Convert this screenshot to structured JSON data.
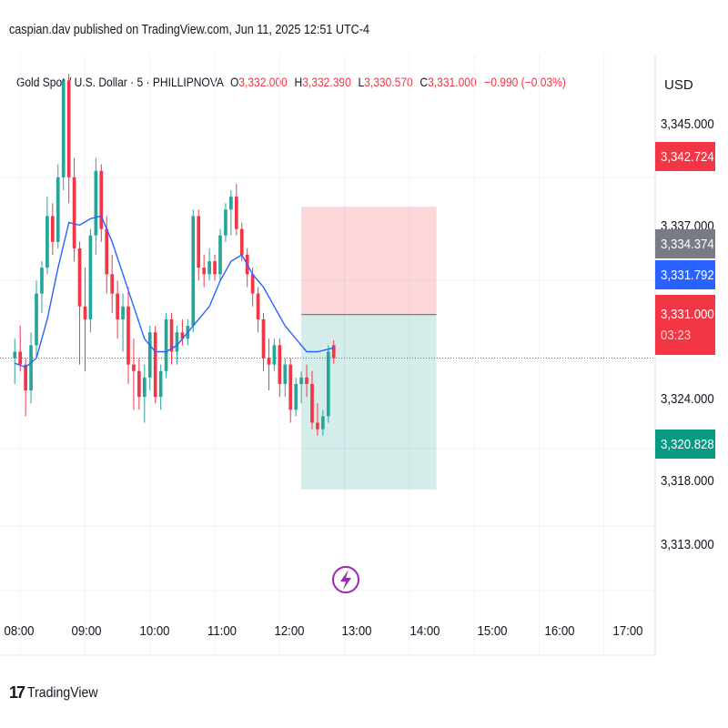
{
  "header": {
    "publisher_line": "caspian.dav published on TradingView.com, Jun 11, 2025 12:51 UTC-4"
  },
  "legend": {
    "symbol": "Gold Spot / U.S. Dollar · 5 · PHILLIPNOVA",
    "open_key": "O",
    "open": "3,332.000",
    "high_key": "H",
    "high": "3,332.390",
    "low_key": "L",
    "low": "3,330.570",
    "close_key": "C",
    "close": "3,331.000",
    "change": "−0.990 (−0.03%)"
  },
  "currency": "USD",
  "price_tags": {
    "target": "3,342.724",
    "entry": "3,334.374",
    "ma": "3,331.792",
    "last": "3,331.000",
    "countdown": "03:23",
    "stop": "3,320.828"
  },
  "colors": {
    "up": "#26a69a",
    "down": "#f23645",
    "ma": "#2962ff",
    "target_zone": "#f23645",
    "stop_zone": "#26a69a",
    "entry_tag": "#787b86",
    "lightning": "#9c27b0"
  },
  "chart_data": {
    "type": "candlestick",
    "title": "Gold Spot / U.S. Dollar · 5 · PHILLIPNOVA",
    "interval_minutes": 5,
    "y_ticks": [
      "3,345.000",
      "3,337.000",
      "3,324.000",
      "3,318.000",
      "3,313.000"
    ],
    "x_ticks": [
      "08:00",
      "09:00",
      "10:00",
      "11:00",
      "12:00",
      "13:00",
      "14:00",
      "15:00",
      "16:00",
      "17:00"
    ],
    "ylim": [
      3308.0,
      3354.5
    ],
    "xlim": [
      "07:59",
      "18:05"
    ],
    "grid": true,
    "candles": [
      {
        "t": "07:55",
        "o": 3331.0,
        "h": 3332.5,
        "l": 3329.0,
        "c": 3331.5
      },
      {
        "t": "08:00",
        "o": 3331.5,
        "h": 3333.5,
        "l": 3330.0,
        "c": 3330.5
      },
      {
        "t": "08:05",
        "o": 3330.5,
        "h": 3331.0,
        "l": 3326.5,
        "c": 3328.5
      },
      {
        "t": "08:10",
        "o": 3328.5,
        "h": 3333.0,
        "l": 3327.5,
        "c": 3332.0
      },
      {
        "t": "08:15",
        "o": 3332.0,
        "h": 3337.0,
        "l": 3331.0,
        "c": 3336.0
      },
      {
        "t": "08:20",
        "o": 3336.0,
        "h": 3338.5,
        "l": 3334.5,
        "c": 3338.0
      },
      {
        "t": "08:25",
        "o": 3338.0,
        "h": 3343.5,
        "l": 3337.5,
        "c": 3342.0
      },
      {
        "t": "08:30",
        "o": 3342.0,
        "h": 3343.0,
        "l": 3339.0,
        "c": 3340.0
      },
      {
        "t": "08:35",
        "o": 3340.0,
        "h": 3346.0,
        "l": 3339.5,
        "c": 3345.0
      },
      {
        "t": "08:40",
        "o": 3345.0,
        "h": 3352.5,
        "l": 3344.0,
        "c": 3352.5
      },
      {
        "t": "08:45",
        "o": 3352.5,
        "h": 3353.0,
        "l": 3343.0,
        "c": 3345.0
      },
      {
        "t": "08:50",
        "o": 3345.0,
        "h": 3346.5,
        "l": 3338.5,
        "c": 3339.5
      },
      {
        "t": "08:55",
        "o": 3339.5,
        "h": 3340.0,
        "l": 3330.5,
        "c": 3335.0
      },
      {
        "t": "09:00",
        "o": 3335.0,
        "h": 3338.0,
        "l": 3330.0,
        "c": 3334.0
      },
      {
        "t": "09:05",
        "o": 3334.0,
        "h": 3341.0,
        "l": 3333.0,
        "c": 3340.5
      },
      {
        "t": "09:10",
        "o": 3340.5,
        "h": 3346.5,
        "l": 3339.0,
        "c": 3345.5
      },
      {
        "t": "09:15",
        "o": 3345.5,
        "h": 3346.0,
        "l": 3340.0,
        "c": 3341.0
      },
      {
        "t": "09:20",
        "o": 3341.0,
        "h": 3342.0,
        "l": 3336.0,
        "c": 3337.5
      },
      {
        "t": "09:25",
        "o": 3337.5,
        "h": 3339.0,
        "l": 3334.5,
        "c": 3336.0
      },
      {
        "t": "09:30",
        "o": 3336.0,
        "h": 3337.0,
        "l": 3332.5,
        "c": 3334.0
      },
      {
        "t": "09:35",
        "o": 3334.0,
        "h": 3336.0,
        "l": 3331.5,
        "c": 3335.0
      },
      {
        "t": "09:40",
        "o": 3335.0,
        "h": 3336.5,
        "l": 3329.0,
        "c": 3330.5
      },
      {
        "t": "09:45",
        "o": 3330.5,
        "h": 3332.5,
        "l": 3327.0,
        "c": 3330.0
      },
      {
        "t": "09:50",
        "o": 3330.0,
        "h": 3331.0,
        "l": 3327.0,
        "c": 3328.0
      },
      {
        "t": "09:55",
        "o": 3328.0,
        "h": 3330.5,
        "l": 3326.0,
        "c": 3329.5
      },
      {
        "t": "10:00",
        "o": 3329.5,
        "h": 3333.5,
        "l": 3328.5,
        "c": 3333.0
      },
      {
        "t": "10:05",
        "o": 3333.0,
        "h": 3333.5,
        "l": 3327.5,
        "c": 3328.0
      },
      {
        "t": "10:10",
        "o": 3328.0,
        "h": 3330.5,
        "l": 3327.0,
        "c": 3330.0
      },
      {
        "t": "10:15",
        "o": 3330.0,
        "h": 3334.5,
        "l": 3329.5,
        "c": 3334.0
      },
      {
        "t": "10:20",
        "o": 3334.0,
        "h": 3334.5,
        "l": 3330.5,
        "c": 3331.5
      },
      {
        "t": "10:25",
        "o": 3331.5,
        "h": 3333.5,
        "l": 3330.5,
        "c": 3333.0
      },
      {
        "t": "10:30",
        "o": 3333.0,
        "h": 3334.0,
        "l": 3332.0,
        "c": 3332.5
      },
      {
        "t": "10:35",
        "o": 3332.5,
        "h": 3334.0,
        "l": 3332.0,
        "c": 3333.5
      },
      {
        "t": "10:40",
        "o": 3333.5,
        "h": 3342.5,
        "l": 3333.0,
        "c": 3342.0
      },
      {
        "t": "10:45",
        "o": 3342.0,
        "h": 3342.5,
        "l": 3337.0,
        "c": 3338.0
      },
      {
        "t": "10:50",
        "o": 3338.0,
        "h": 3339.0,
        "l": 3336.5,
        "c": 3337.5
      },
      {
        "t": "10:55",
        "o": 3337.5,
        "h": 3339.5,
        "l": 3337.0,
        "c": 3338.5
      },
      {
        "t": "11:00",
        "o": 3338.5,
        "h": 3339.0,
        "l": 3337.0,
        "c": 3337.5
      },
      {
        "t": "11:05",
        "o": 3337.5,
        "h": 3341.0,
        "l": 3337.0,
        "c": 3340.5
      },
      {
        "t": "11:10",
        "o": 3340.5,
        "h": 3343.0,
        "l": 3340.0,
        "c": 3342.5
      },
      {
        "t": "11:15",
        "o": 3342.5,
        "h": 3344.0,
        "l": 3340.5,
        "c": 3343.5
      },
      {
        "t": "11:20",
        "o": 3343.5,
        "h": 3344.5,
        "l": 3340.5,
        "c": 3341.0
      },
      {
        "t": "11:25",
        "o": 3341.0,
        "h": 3341.5,
        "l": 3338.5,
        "c": 3339.0
      },
      {
        "t": "11:30",
        "o": 3339.0,
        "h": 3339.5,
        "l": 3336.5,
        "c": 3337.5
      },
      {
        "t": "11:35",
        "o": 3337.5,
        "h": 3338.0,
        "l": 3335.0,
        "c": 3336.0
      },
      {
        "t": "11:40",
        "o": 3336.0,
        "h": 3336.5,
        "l": 3333.0,
        "c": 3334.0
      },
      {
        "t": "11:45",
        "o": 3334.0,
        "h": 3334.5,
        "l": 3330.0,
        "c": 3331.0
      },
      {
        "t": "11:50",
        "o": 3331.0,
        "h": 3332.5,
        "l": 3328.5,
        "c": 3330.5
      },
      {
        "t": "11:55",
        "o": 3330.5,
        "h": 3332.5,
        "l": 3330.0,
        "c": 3332.0
      },
      {
        "t": "12:00",
        "o": 3332.0,
        "h": 3332.5,
        "l": 3328.0,
        "c": 3329.0
      },
      {
        "t": "12:05",
        "o": 3329.0,
        "h": 3331.0,
        "l": 3328.0,
        "c": 3330.5
      },
      {
        "t": "12:10",
        "o": 3330.5,
        "h": 3331.0,
        "l": 3326.0,
        "c": 3327.0
      },
      {
        "t": "12:15",
        "o": 3327.0,
        "h": 3329.5,
        "l": 3326.5,
        "c": 3329.0
      },
      {
        "t": "12:20",
        "o": 3329.0,
        "h": 3330.0,
        "l": 3327.5,
        "c": 3329.5
      },
      {
        "t": "12:25",
        "o": 3329.5,
        "h": 3330.5,
        "l": 3328.0,
        "c": 3329.0
      },
      {
        "t": "12:30",
        "o": 3329.0,
        "h": 3330.0,
        "l": 3325.5,
        "c": 3326.0
      },
      {
        "t": "12:35",
        "o": 3326.0,
        "h": 3327.5,
        "l": 3325.0,
        "c": 3325.5
      },
      {
        "t": "12:40",
        "o": 3325.5,
        "h": 3327.0,
        "l": 3325.0,
        "c": 3326.5
      },
      {
        "t": "12:45",
        "o": 3326.5,
        "h": 3332.0,
        "l": 3326.0,
        "c": 3331.5
      },
      {
        "t": "12:50",
        "o": 3332.0,
        "h": 3332.39,
        "l": 3330.57,
        "c": 3331.0
      }
    ],
    "moving_average": [
      {
        "t": "07:55",
        "v": 3330.6
      },
      {
        "t": "08:05",
        "v": 3330.3
      },
      {
        "t": "08:15",
        "v": 3331.0
      },
      {
        "t": "08:25",
        "v": 3334.0
      },
      {
        "t": "08:35",
        "v": 3338.0
      },
      {
        "t": "08:45",
        "v": 3341.5
      },
      {
        "t": "08:55",
        "v": 3341.3
      },
      {
        "t": "09:05",
        "v": 3341.8
      },
      {
        "t": "09:15",
        "v": 3342.0
      },
      {
        "t": "09:25",
        "v": 3340.0
      },
      {
        "t": "09:35",
        "v": 3337.5
      },
      {
        "t": "09:45",
        "v": 3335.0
      },
      {
        "t": "09:55",
        "v": 3332.5
      },
      {
        "t": "10:05",
        "v": 3331.5
      },
      {
        "t": "10:15",
        "v": 3331.5
      },
      {
        "t": "10:25",
        "v": 3332.0
      },
      {
        "t": "10:35",
        "v": 3333.0
      },
      {
        "t": "10:45",
        "v": 3334.0
      },
      {
        "t": "10:55",
        "v": 3335.0
      },
      {
        "t": "11:05",
        "v": 3337.0
      },
      {
        "t": "11:15",
        "v": 3338.5
      },
      {
        "t": "11:25",
        "v": 3339.0
      },
      {
        "t": "11:35",
        "v": 3337.5
      },
      {
        "t": "11:45",
        "v": 3336.5
      },
      {
        "t": "11:55",
        "v": 3335.0
      },
      {
        "t": "12:05",
        "v": 3333.5
      },
      {
        "t": "12:15",
        "v": 3332.5
      },
      {
        "t": "12:25",
        "v": 3331.5
      },
      {
        "t": "12:35",
        "v": 3331.5
      },
      {
        "t": "12:50",
        "v": 3331.792
      }
    ],
    "position": {
      "start": "12:20",
      "end": "14:25",
      "target": 3342.724,
      "entry": 3334.374,
      "stop": 3320.828
    },
    "last_price": 3331.0
  }
}
